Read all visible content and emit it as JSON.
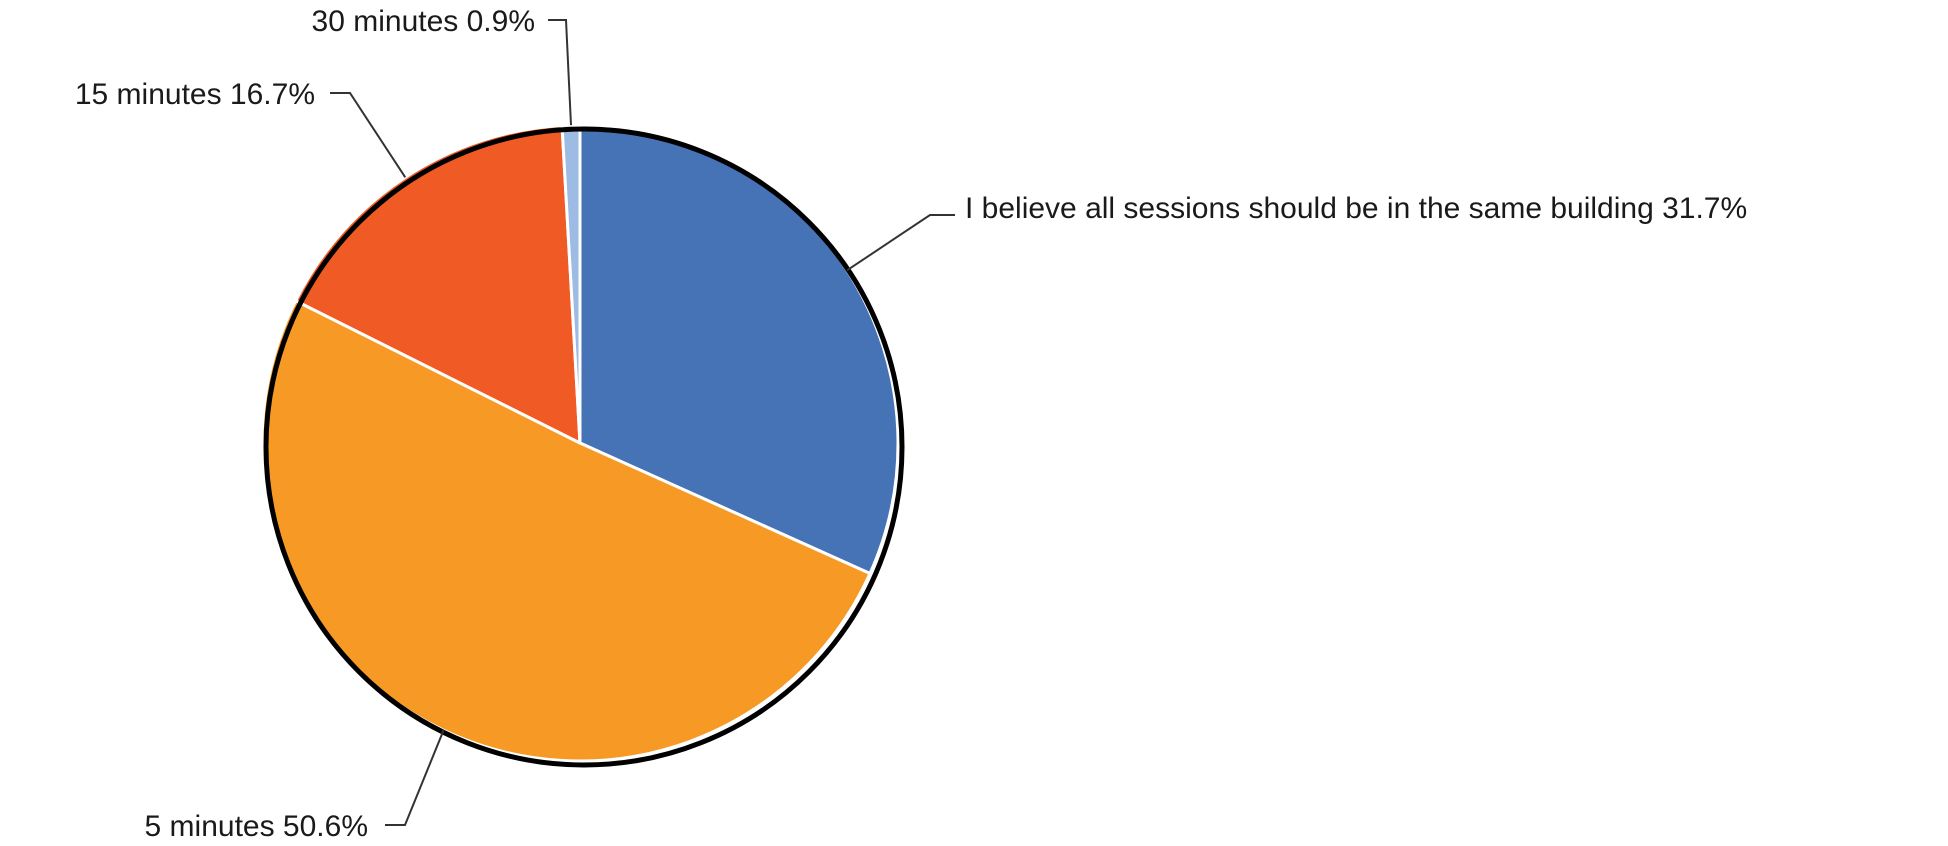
{
  "chart_data": {
    "type": "pie",
    "slices": [
      {
        "label": "I believe all sessions should be in the same building",
        "value": 31.7,
        "display": "I believe all sessions should be in the same building 31.7%",
        "color": "#4672b6"
      },
      {
        "label": "5 minutes",
        "value": 50.6,
        "display": "5 minutes 50.6%",
        "color": "#f79a25"
      },
      {
        "label": "15 minutes",
        "value": 16.7,
        "display": "15 minutes 16.7%",
        "color": "#f05a24"
      },
      {
        "label": "30 minutes",
        "value": 0.9,
        "display": "30 minutes 0.9%",
        "color": "#9dbbe3"
      }
    ],
    "start": "12 o'clock",
    "direction": "clockwise",
    "legend": "none"
  }
}
